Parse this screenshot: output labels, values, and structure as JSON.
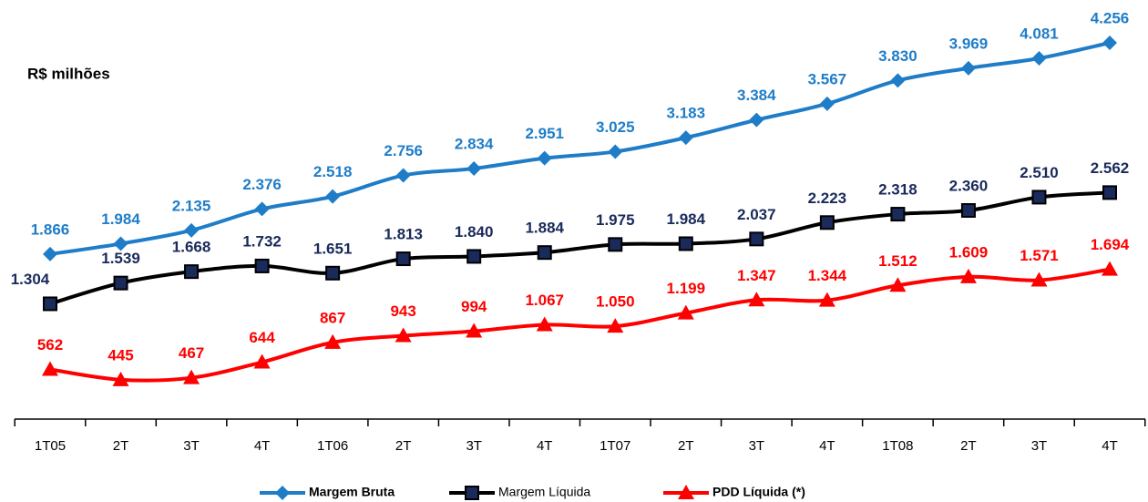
{
  "chart_data": {
    "type": "line",
    "annotation": "R$ milhões",
    "categories": [
      "1T05",
      "2T",
      "3T",
      "4T",
      "1T06",
      "2T",
      "3T",
      "4T",
      "1T07",
      "2T",
      "3T",
      "4T",
      "1T08",
      "2T",
      "3T",
      "4T"
    ],
    "series": [
      {
        "name": "Margem Bruta",
        "color": "#1f7dc8",
        "marker": "diamond",
        "values": [
          1866,
          1984,
          2135,
          2376,
          2518,
          2756,
          2834,
          2951,
          3025,
          3183,
          3384,
          3567,
          3830,
          3969,
          4081,
          4256
        ],
        "value_labels": [
          "1.866",
          "1.984",
          "2.135",
          "2.376",
          "2.518",
          "2.756",
          "2.834",
          "2.951",
          "3.025",
          "3.183",
          "3.384",
          "3.567",
          "3.830",
          "3.969",
          "4.081",
          "4.256"
        ]
      },
      {
        "name": "Margem Líquida",
        "color": "#000000",
        "marker": "square",
        "values": [
          1304,
          1539,
          1668,
          1732,
          1651,
          1813,
          1840,
          1884,
          1975,
          1984,
          2037,
          2223,
          2318,
          2360,
          2510,
          2562
        ],
        "value_labels": [
          "1.304",
          "1.539",
          "1.668",
          "1.732",
          "1.651",
          "1.813",
          "1.840",
          "1.884",
          "1.975",
          "1.984",
          "2.037",
          "2.223",
          "2.318",
          "2.360",
          "2.510",
          "2.562"
        ]
      },
      {
        "name": "PDD Líquida  (*)",
        "color": "#ff0000",
        "marker": "triangle",
        "values": [
          562,
          445,
          467,
          644,
          867,
          943,
          994,
          1067,
          1050,
          1199,
          1347,
          1344,
          1512,
          1609,
          1571,
          1694
        ],
        "value_labels": [
          "562",
          "445",
          "467",
          "644",
          "867",
          "943",
          "994",
          "1.067",
          "1.050",
          "1.199",
          "1.347",
          "1.344",
          "1.512",
          "1.609",
          "1.571",
          "1.694"
        ]
      }
    ]
  }
}
